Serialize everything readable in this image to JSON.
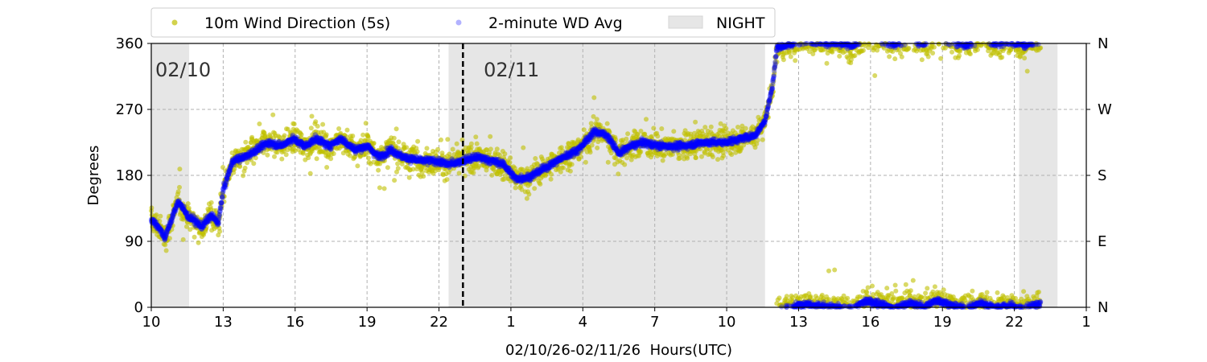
{
  "chart_data": {
    "type": "scatter",
    "title": "",
    "xlabel": "02/10/26-02/11/26  Hours(UTC)",
    "ylabel": "Degrees",
    "x_unit": "hours since 02/10 10:00 UTC",
    "xlim": [
      0,
      39
    ],
    "ylim": [
      0,
      360
    ],
    "x_ticks": [
      {
        "h": 0,
        "label": "10"
      },
      {
        "h": 3,
        "label": "13"
      },
      {
        "h": 6,
        "label": "16"
      },
      {
        "h": 9,
        "label": "19"
      },
      {
        "h": 12,
        "label": "22"
      },
      {
        "h": 15,
        "label": "1"
      },
      {
        "h": 18,
        "label": "4"
      },
      {
        "h": 21,
        "label": "7"
      },
      {
        "h": 24,
        "label": "10"
      },
      {
        "h": 27,
        "label": "13"
      },
      {
        "h": 30,
        "label": "16"
      },
      {
        "h": 33,
        "label": "19"
      },
      {
        "h": 36,
        "label": "22"
      },
      {
        "h": 39,
        "label": "1"
      }
    ],
    "y_ticks": [
      0,
      90,
      180,
      270,
      360
    ],
    "y2_ticks": [
      {
        "v": 0,
        "label": "N"
      },
      {
        "v": 90,
        "label": "E"
      },
      {
        "v": 180,
        "label": "S"
      },
      {
        "v": 270,
        "label": "W"
      },
      {
        "v": 360,
        "label": "N"
      }
    ],
    "grid": true,
    "legend": {
      "placement": "top",
      "entries": [
        {
          "label": "10m Wind Direction (5s)",
          "color": "#bfbf00"
        },
        {
          "label": "2-minute WD Avg",
          "color": "#0000ff"
        },
        {
          "label": "NIGHT",
          "color": "#e6e6e6"
        }
      ]
    },
    "night_periods": [
      [
        0,
        1.58
      ],
      [
        12.4,
        25.6
      ],
      [
        36.2,
        37.8
      ]
    ],
    "midnight_line_h": 13.0,
    "date_labels": [
      {
        "h": 0.1,
        "label": "02/10"
      },
      {
        "h": 13.8,
        "label": "02/11"
      }
    ],
    "raw_spread_deg": 15,
    "series": [
      {
        "name": "2-minute WD Avg (unwrapped, plotted mod 360)",
        "points": [
          [
            0,
            120
          ],
          [
            0.3,
            110
          ],
          [
            0.57,
            95
          ],
          [
            0.9,
            125
          ],
          [
            1.14,
            145
          ],
          [
            1.5,
            125
          ],
          [
            1.74,
            120
          ],
          [
            2.1,
            110
          ],
          [
            2.5,
            125
          ],
          [
            2.8,
            115
          ],
          [
            3.0,
            160
          ],
          [
            3.4,
            200
          ],
          [
            3.9,
            205
          ],
          [
            4.4,
            215
          ],
          [
            4.9,
            225
          ],
          [
            5.4,
            220
          ],
          [
            5.9,
            230
          ],
          [
            6.4,
            220
          ],
          [
            6.9,
            230
          ],
          [
            7.4,
            220
          ],
          [
            7.9,
            230
          ],
          [
            8.5,
            215
          ],
          [
            9.0,
            220
          ],
          [
            9.5,
            205
          ],
          [
            10.0,
            215
          ],
          [
            10.5,
            205
          ],
          [
            11.2,
            200
          ],
          [
            11.8,
            200
          ],
          [
            12.4,
            195
          ],
          [
            13.0,
            200
          ],
          [
            13.6,
            205
          ],
          [
            14.2,
            200
          ],
          [
            14.7,
            195
          ],
          [
            15.2,
            175
          ],
          [
            15.8,
            178
          ],
          [
            16.4,
            190
          ],
          [
            17.2,
            205
          ],
          [
            17.8,
            215
          ],
          [
            18.5,
            240
          ],
          [
            19.0,
            235
          ],
          [
            19.5,
            210
          ],
          [
            20.0,
            220
          ],
          [
            20.5,
            225
          ],
          [
            21.2,
            220
          ],
          [
            22.2,
            220
          ],
          [
            23.0,
            225
          ],
          [
            23.9,
            225
          ],
          [
            24.6,
            230
          ],
          [
            25.2,
            235
          ],
          [
            25.6,
            255
          ],
          [
            25.9,
            300
          ],
          [
            26.1,
            355
          ],
          [
            26.6,
            358
          ],
          [
            27.2,
            365
          ],
          [
            27.8,
            362
          ],
          [
            28.5,
            360
          ],
          [
            29.2,
            357
          ],
          [
            29.8,
            368
          ],
          [
            30.4,
            365
          ],
          [
            31.0,
            358
          ],
          [
            31.6,
            366
          ],
          [
            32.2,
            360
          ],
          [
            32.8,
            370
          ],
          [
            33.4,
            362
          ],
          [
            34.0,
            358
          ],
          [
            34.6,
            366
          ],
          [
            35.2,
            360
          ],
          [
            35.8,
            362
          ],
          [
            36.4,
            358
          ],
          [
            37.1,
            365
          ]
        ]
      }
    ]
  }
}
